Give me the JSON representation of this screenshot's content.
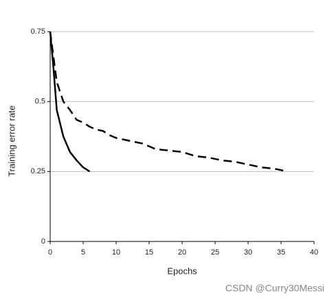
{
  "chart_data": {
    "type": "line",
    "xlabel": "Epochs",
    "ylabel": "Training error rate",
    "xlim": [
      0,
      40
    ],
    "xticks": [
      0,
      5,
      10,
      15,
      20,
      25,
      30,
      35,
      40
    ],
    "ylim": [
      0,
      0.75
    ],
    "yticks": [
      0,
      0.25,
      0.5,
      0.75
    ],
    "grid": true,
    "series": [
      {
        "color": "#000000",
        "line_style": "solid",
        "x": [
          0,
          0.5,
          1,
          2,
          3,
          4,
          5,
          6
        ],
        "values": [
          0.75,
          0.62,
          0.47,
          0.375,
          0.32,
          0.29,
          0.265,
          0.25
        ]
      },
      {
        "color": "#000000",
        "line_style": "dashed",
        "x": [
          0,
          1,
          2,
          3,
          4,
          5,
          6,
          7,
          8,
          9,
          10,
          12,
          14,
          16,
          18,
          20,
          22,
          24,
          26,
          28,
          30,
          32,
          34,
          36
        ],
        "values": [
          0.75,
          0.57,
          0.5,
          0.47,
          0.435,
          0.425,
          0.41,
          0.4,
          0.395,
          0.38,
          0.37,
          0.36,
          0.35,
          0.33,
          0.325,
          0.32,
          0.305,
          0.3,
          0.29,
          0.285,
          0.275,
          0.265,
          0.26,
          0.25
        ]
      }
    ]
  },
  "watermark": "CSDN @Curry30Messi"
}
